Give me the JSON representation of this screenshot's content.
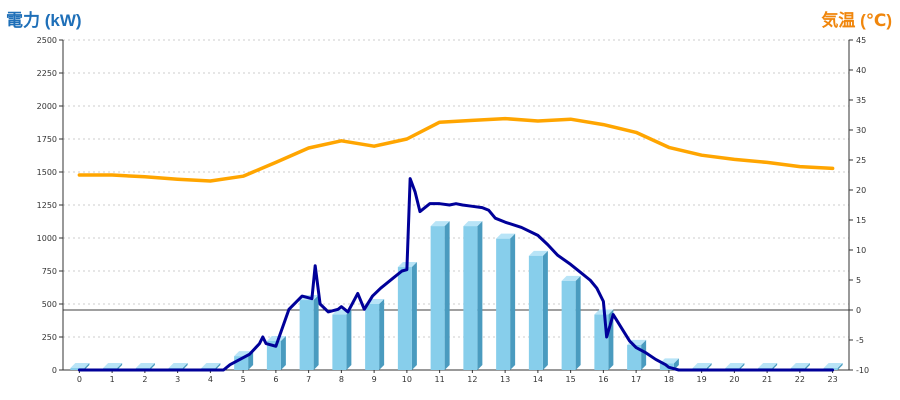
{
  "chart_data": {
    "type": "bar+line",
    "y_left": {
      "label": "電力 (kW)",
      "min": 0,
      "max": 2500,
      "ticks": [
        0,
        250,
        500,
        750,
        1000,
        1250,
        1500,
        1750,
        2000,
        2250,
        2500
      ]
    },
    "y_right": {
      "label": "気温 (℃)",
      "min": -10,
      "max": 45,
      "ticks": [
        -10,
        -5,
        0,
        5,
        10,
        15,
        20,
        25,
        30,
        35,
        40,
        45
      ]
    },
    "x": {
      "categories": [
        "0",
        "1",
        "2",
        "3",
        "4",
        "5",
        "6",
        "7",
        "8",
        "9",
        "10",
        "11",
        "12",
        "13",
        "14",
        "15",
        "16",
        "17",
        "18",
        "19",
        "20",
        "21",
        "22",
        "23"
      ]
    },
    "grid": true,
    "reference_line": {
      "axis": "right",
      "value": 0
    },
    "colors": {
      "bar_front": "#87ceeb",
      "bar_side": "#4a9bbf",
      "bar_top": "#b8e4f7",
      "power_line": "#000099",
      "temperature_line": "#ffa500",
      "grid": "#cccccc",
      "left_title": "#1e6fb8",
      "right_title": "#f0860c"
    },
    "bars_hourly_power_kw": [
      15,
      15,
      15,
      15,
      15,
      105,
      220,
      530,
      420,
      500,
      780,
      1090,
      1090,
      995,
      865,
      675,
      420,
      190,
      50,
      15,
      15,
      15,
      15,
      15
    ],
    "power_line_kw": [
      [
        0,
        0
      ],
      [
        1,
        0
      ],
      [
        2,
        0
      ],
      [
        3,
        0
      ],
      [
        4,
        0
      ],
      [
        4.4,
        0
      ],
      [
        4.6,
        40
      ],
      [
        5.2,
        120
      ],
      [
        5.5,
        200
      ],
      [
        5.6,
        250
      ],
      [
        5.7,
        200
      ],
      [
        6.0,
        180
      ],
      [
        6.4,
        460
      ],
      [
        6.8,
        560
      ],
      [
        7.1,
        540
      ],
      [
        7.2,
        790
      ],
      [
        7.35,
        500
      ],
      [
        7.6,
        440
      ],
      [
        7.9,
        460
      ],
      [
        8.0,
        480
      ],
      [
        8.2,
        440
      ],
      [
        8.5,
        580
      ],
      [
        8.7,
        460
      ],
      [
        8.95,
        560
      ],
      [
        9.2,
        620
      ],
      [
        9.6,
        700
      ],
      [
        9.85,
        750
      ],
      [
        10.0,
        760
      ],
      [
        10.1,
        1450
      ],
      [
        10.25,
        1350
      ],
      [
        10.4,
        1200
      ],
      [
        10.7,
        1260
      ],
      [
        11.0,
        1260
      ],
      [
        11.3,
        1250
      ],
      [
        11.5,
        1260
      ],
      [
        11.7,
        1250
      ],
      [
        12.0,
        1240
      ],
      [
        12.3,
        1230
      ],
      [
        12.5,
        1210
      ],
      [
        12.7,
        1150
      ],
      [
        13.0,
        1120
      ],
      [
        13.5,
        1080
      ],
      [
        14.0,
        1020
      ],
      [
        14.3,
        950
      ],
      [
        14.6,
        870
      ],
      [
        15.0,
        800
      ],
      [
        15.3,
        740
      ],
      [
        15.6,
        680
      ],
      [
        15.8,
        620
      ],
      [
        16.0,
        520
      ],
      [
        16.1,
        250
      ],
      [
        16.3,
        420
      ],
      [
        16.6,
        300
      ],
      [
        16.8,
        220
      ],
      [
        17.0,
        170
      ],
      [
        17.3,
        130
      ],
      [
        17.6,
        80
      ],
      [
        17.9,
        40
      ],
      [
        18.0,
        20
      ],
      [
        18.3,
        0
      ],
      [
        19,
        0
      ],
      [
        20,
        0
      ],
      [
        21,
        0
      ],
      [
        22,
        0
      ],
      [
        23,
        0
      ]
    ],
    "temperature_c": [
      22.5,
      22.5,
      22.2,
      21.8,
      21.5,
      22.3,
      24.6,
      27,
      28.2,
      27.3,
      28.5,
      31.3,
      31.6,
      31.9,
      31.5,
      31.8,
      30.9,
      29.6,
      27.1,
      25.8,
      25.1,
      24.6,
      23.9,
      23.6
    ]
  }
}
